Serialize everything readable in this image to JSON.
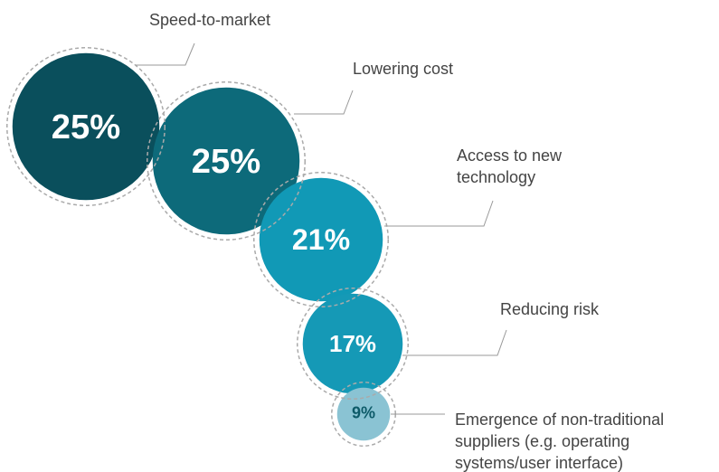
{
  "chart_data": {
    "type": "bubble",
    "categories": [
      "Speed-to-market",
      "Lowering cost",
      "Access to new technology",
      "Reducing risk",
      "Emergence of non-traditional suppliers (e.g. operating systems/user interface)"
    ],
    "values": [
      25,
      25,
      21,
      17,
      9
    ],
    "value_labels": [
      "25%",
      "25%",
      "21%",
      "17%",
      "9%"
    ],
    "colors": [
      "#0a4f5c",
      "#0d6a7a",
      "#1199b6",
      "#1599b6",
      "#8ac3d3"
    ]
  }
}
